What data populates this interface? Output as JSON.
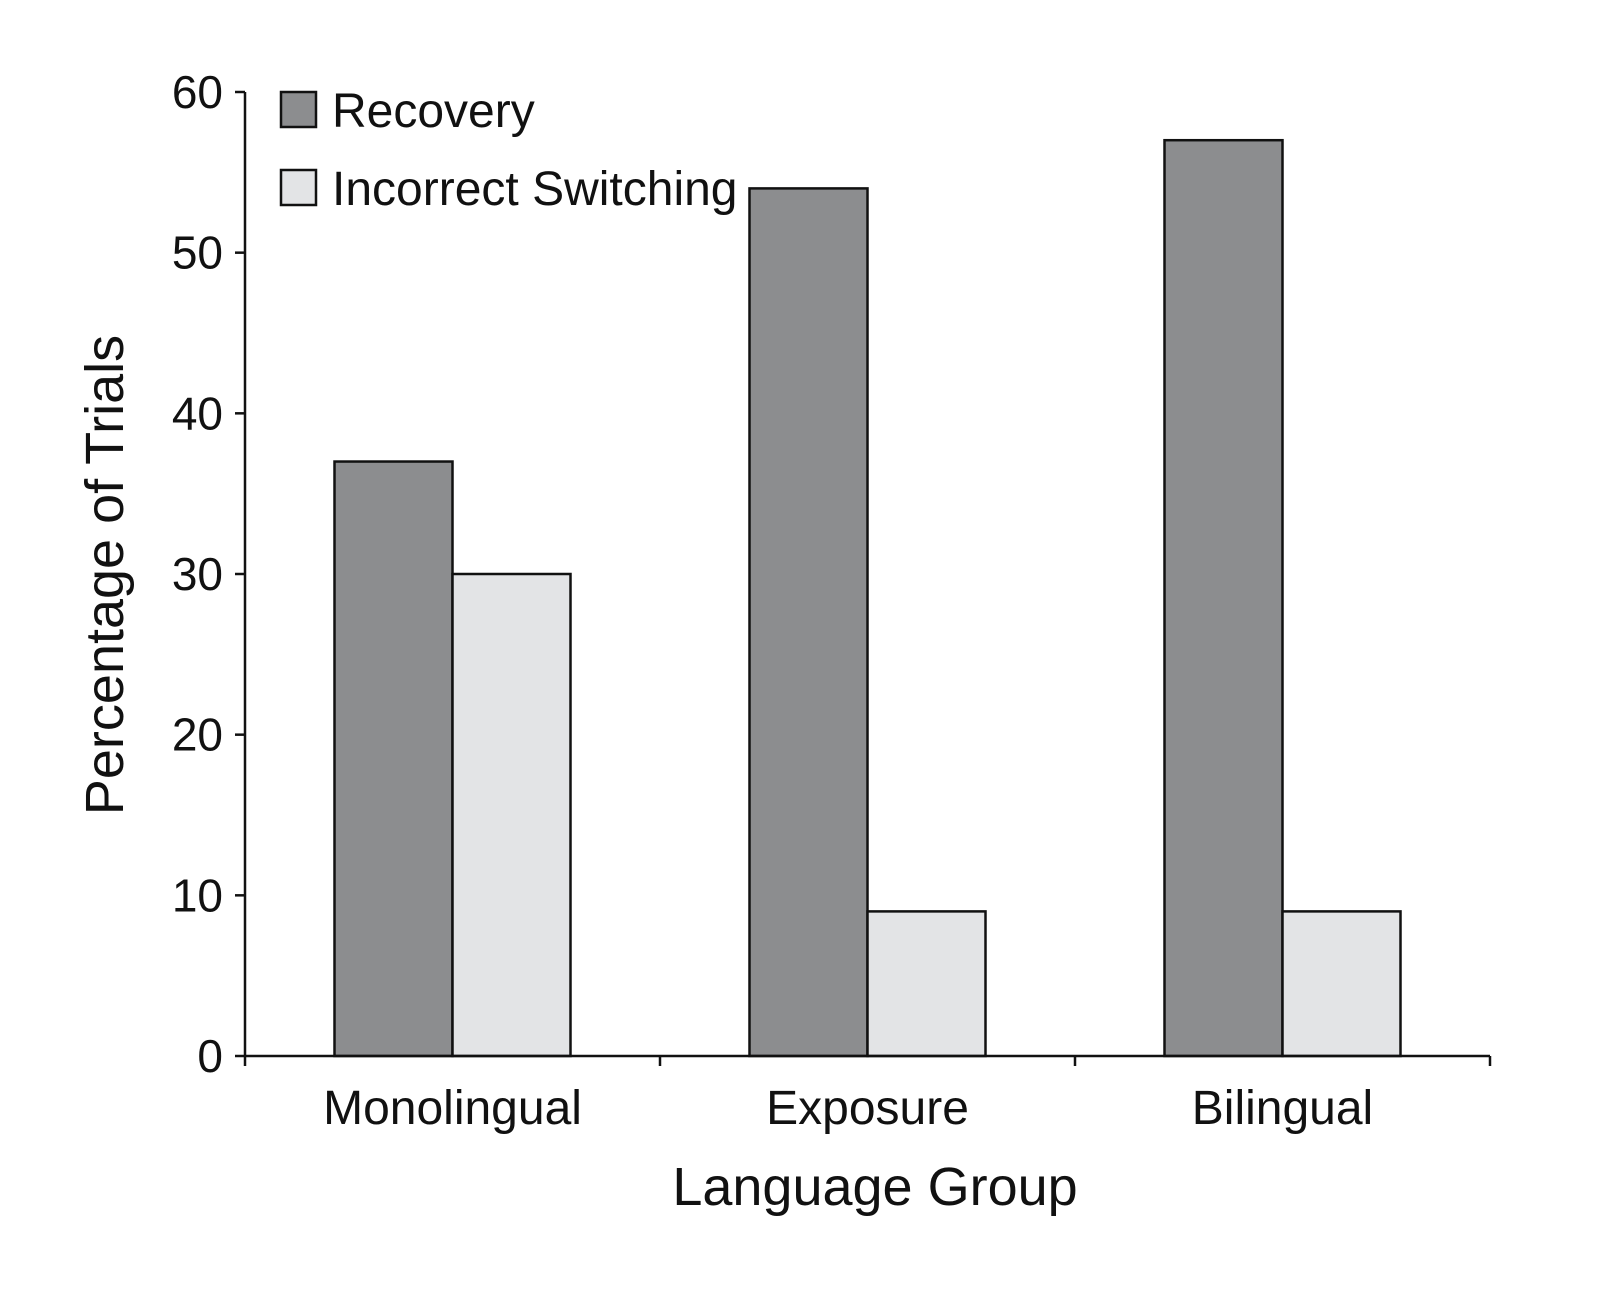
{
  "chart_data": {
    "type": "bar",
    "categories": [
      "Monolingual",
      "Exposure",
      "Bilingual"
    ],
    "series": [
      {
        "name": "Recovery",
        "values": [
          37,
          54,
          57
        ],
        "color": "#8c8d8f"
      },
      {
        "name": "Incorrect Switching",
        "values": [
          30,
          9,
          9
        ],
        "color": "#e3e4e6"
      }
    ],
    "xlabel": "Language Group",
    "ylabel": "Percentage of Trials",
    "ylim": [
      0,
      60
    ],
    "yticks": [
      0,
      10,
      20,
      30,
      40,
      50,
      60
    ],
    "ytick_labels": [
      "0",
      "10",
      "20",
      "30",
      "40",
      "50",
      "60"
    ],
    "grid": false,
    "legend": "top-left"
  }
}
